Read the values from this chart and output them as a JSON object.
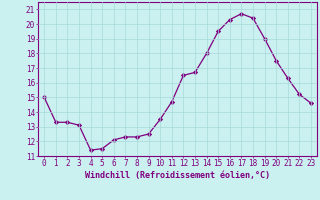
{
  "hours": [
    0,
    1,
    2,
    3,
    4,
    5,
    6,
    7,
    8,
    9,
    10,
    11,
    12,
    13,
    14,
    15,
    16,
    17,
    18,
    19,
    20,
    21,
    22,
    23
  ],
  "values": [
    15.0,
    13.3,
    13.3,
    13.1,
    11.4,
    11.5,
    12.1,
    12.3,
    12.3,
    12.5,
    13.5,
    14.7,
    16.5,
    16.7,
    18.0,
    19.5,
    20.3,
    20.7,
    20.4,
    19.0,
    17.5,
    16.3,
    15.2,
    14.6
  ],
  "line_color": "#800080",
  "marker": "D",
  "markersize": 2.2,
  "linewidth": 0.9,
  "xlabel": "Windchill (Refroidissement éolien,°C)",
  "xlabel_fontsize": 6.0,
  "xlabel_color": "#800080",
  "ylabel_ticks": [
    11,
    12,
    13,
    14,
    15,
    16,
    17,
    18,
    19,
    20,
    21
  ],
  "xlim": [
    -0.5,
    23.5
  ],
  "ylim": [
    11,
    21.5
  ],
  "bg_color": "#caf0f0",
  "grid_color": "#a8d8d8",
  "tick_color": "#800080",
  "tick_fontsize": 5.5,
  "spine_color": "#800080"
}
